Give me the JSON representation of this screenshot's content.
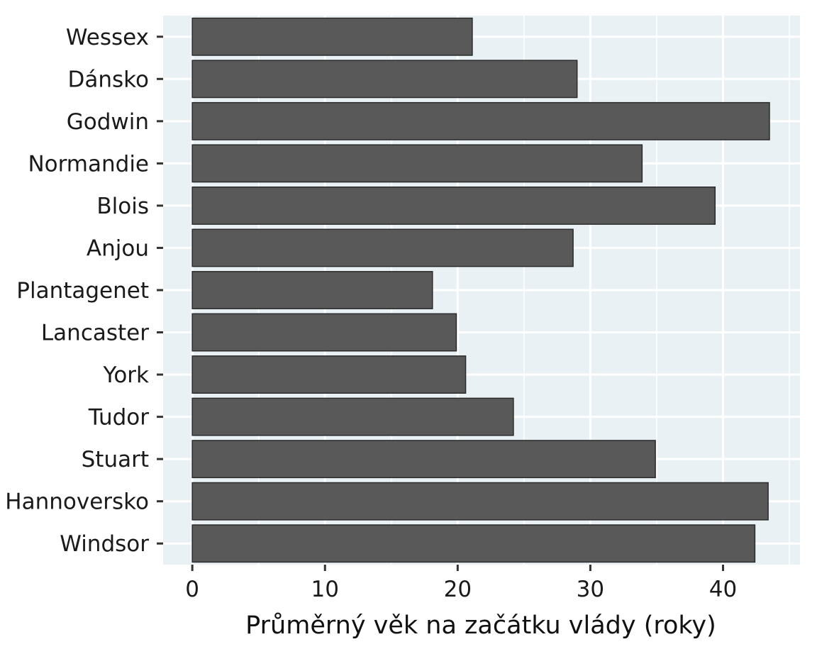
{
  "chart_data": {
    "type": "bar",
    "orientation": "horizontal",
    "categories": [
      "Wessex",
      "Dánsko",
      "Godwin",
      "Normandie",
      "Blois",
      "Anjou",
      "Plantagenet",
      "Lancaster",
      "York",
      "Tudor",
      "Stuart",
      "Hannoversko",
      "Windsor"
    ],
    "values": [
      21.1,
      29.0,
      43.5,
      33.9,
      39.4,
      28.7,
      18.1,
      19.9,
      20.6,
      24.2,
      34.9,
      43.4,
      42.4
    ],
    "xlabel": "Průměrný věk na začátku vlády (roky)",
    "ylabel": "",
    "xlim": [
      -2.2,
      45.8
    ],
    "xticks": [
      0,
      10,
      20,
      30,
      40
    ],
    "grid": true,
    "legend": "none",
    "colors": {
      "bar_fill": "#595959",
      "bar_stroke": "#2b2b2b",
      "panel_background": "#eaf1f5",
      "grid": "#ffffff"
    }
  }
}
